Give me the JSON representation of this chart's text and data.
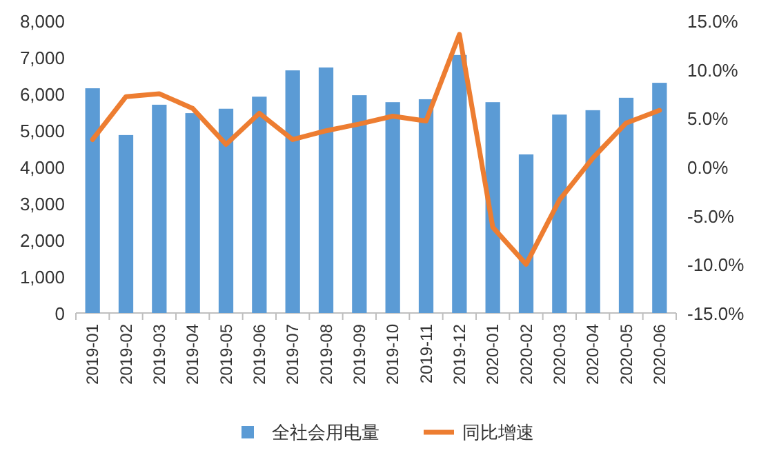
{
  "chart_data": {
    "type": "bar",
    "categories": [
      "2019-01",
      "2019-02",
      "2019-03",
      "2019-04",
      "2019-05",
      "2019-06",
      "2019-07",
      "2019-08",
      "2019-09",
      "2019-10",
      "2019-11",
      "2019-12",
      "2020-01",
      "2020-02",
      "2020-03",
      "2020-04",
      "2020-05",
      "2020-06"
    ],
    "series": [
      {
        "name": "全社会用电量",
        "color": "#5b9bd5",
        "values": [
          6150,
          4870,
          5700,
          5470,
          5590,
          5920,
          6640,
          6720,
          5960,
          5770,
          5850,
          7060,
          5770,
          4340,
          5430,
          5550,
          5890,
          6300
        ]
      },
      {
        "name": "同比增速",
        "type": "line",
        "axis": "y2",
        "color": "#ed7d31",
        "values": [
          2.8,
          7.2,
          7.5,
          6.0,
          2.3,
          5.5,
          2.8,
          3.7,
          4.4,
          5.2,
          4.7,
          13.6,
          -6.2,
          -10.0,
          -3.4,
          0.9,
          4.5,
          5.8
        ]
      }
    ],
    "ylim": [
      0,
      8000
    ],
    "yticks": [
      {
        "value": 0,
        "label": "0"
      },
      {
        "value": 1000,
        "label": "1,000"
      },
      {
        "value": 2000,
        "label": "2,000"
      },
      {
        "value": 3000,
        "label": "3,000"
      },
      {
        "value": 4000,
        "label": "4,000"
      },
      {
        "value": 5000,
        "label": "5,000"
      },
      {
        "value": 6000,
        "label": "6,000"
      },
      {
        "value": 7000,
        "label": "7,000"
      },
      {
        "value": 8000,
        "label": "8,000"
      }
    ],
    "y2lim": [
      -15,
      15
    ],
    "y2ticks": [
      {
        "value": -15,
        "label": "-15.0%"
      },
      {
        "value": -10,
        "label": "-10.0%"
      },
      {
        "value": -5,
        "label": "-5.0%"
      },
      {
        "value": 0,
        "label": "0.0%"
      },
      {
        "value": 5,
        "label": "5.0%"
      },
      {
        "value": 10,
        "label": "10.0%"
      },
      {
        "value": 15,
        "label": "15.0%"
      }
    ],
    "legend": "bottom"
  }
}
